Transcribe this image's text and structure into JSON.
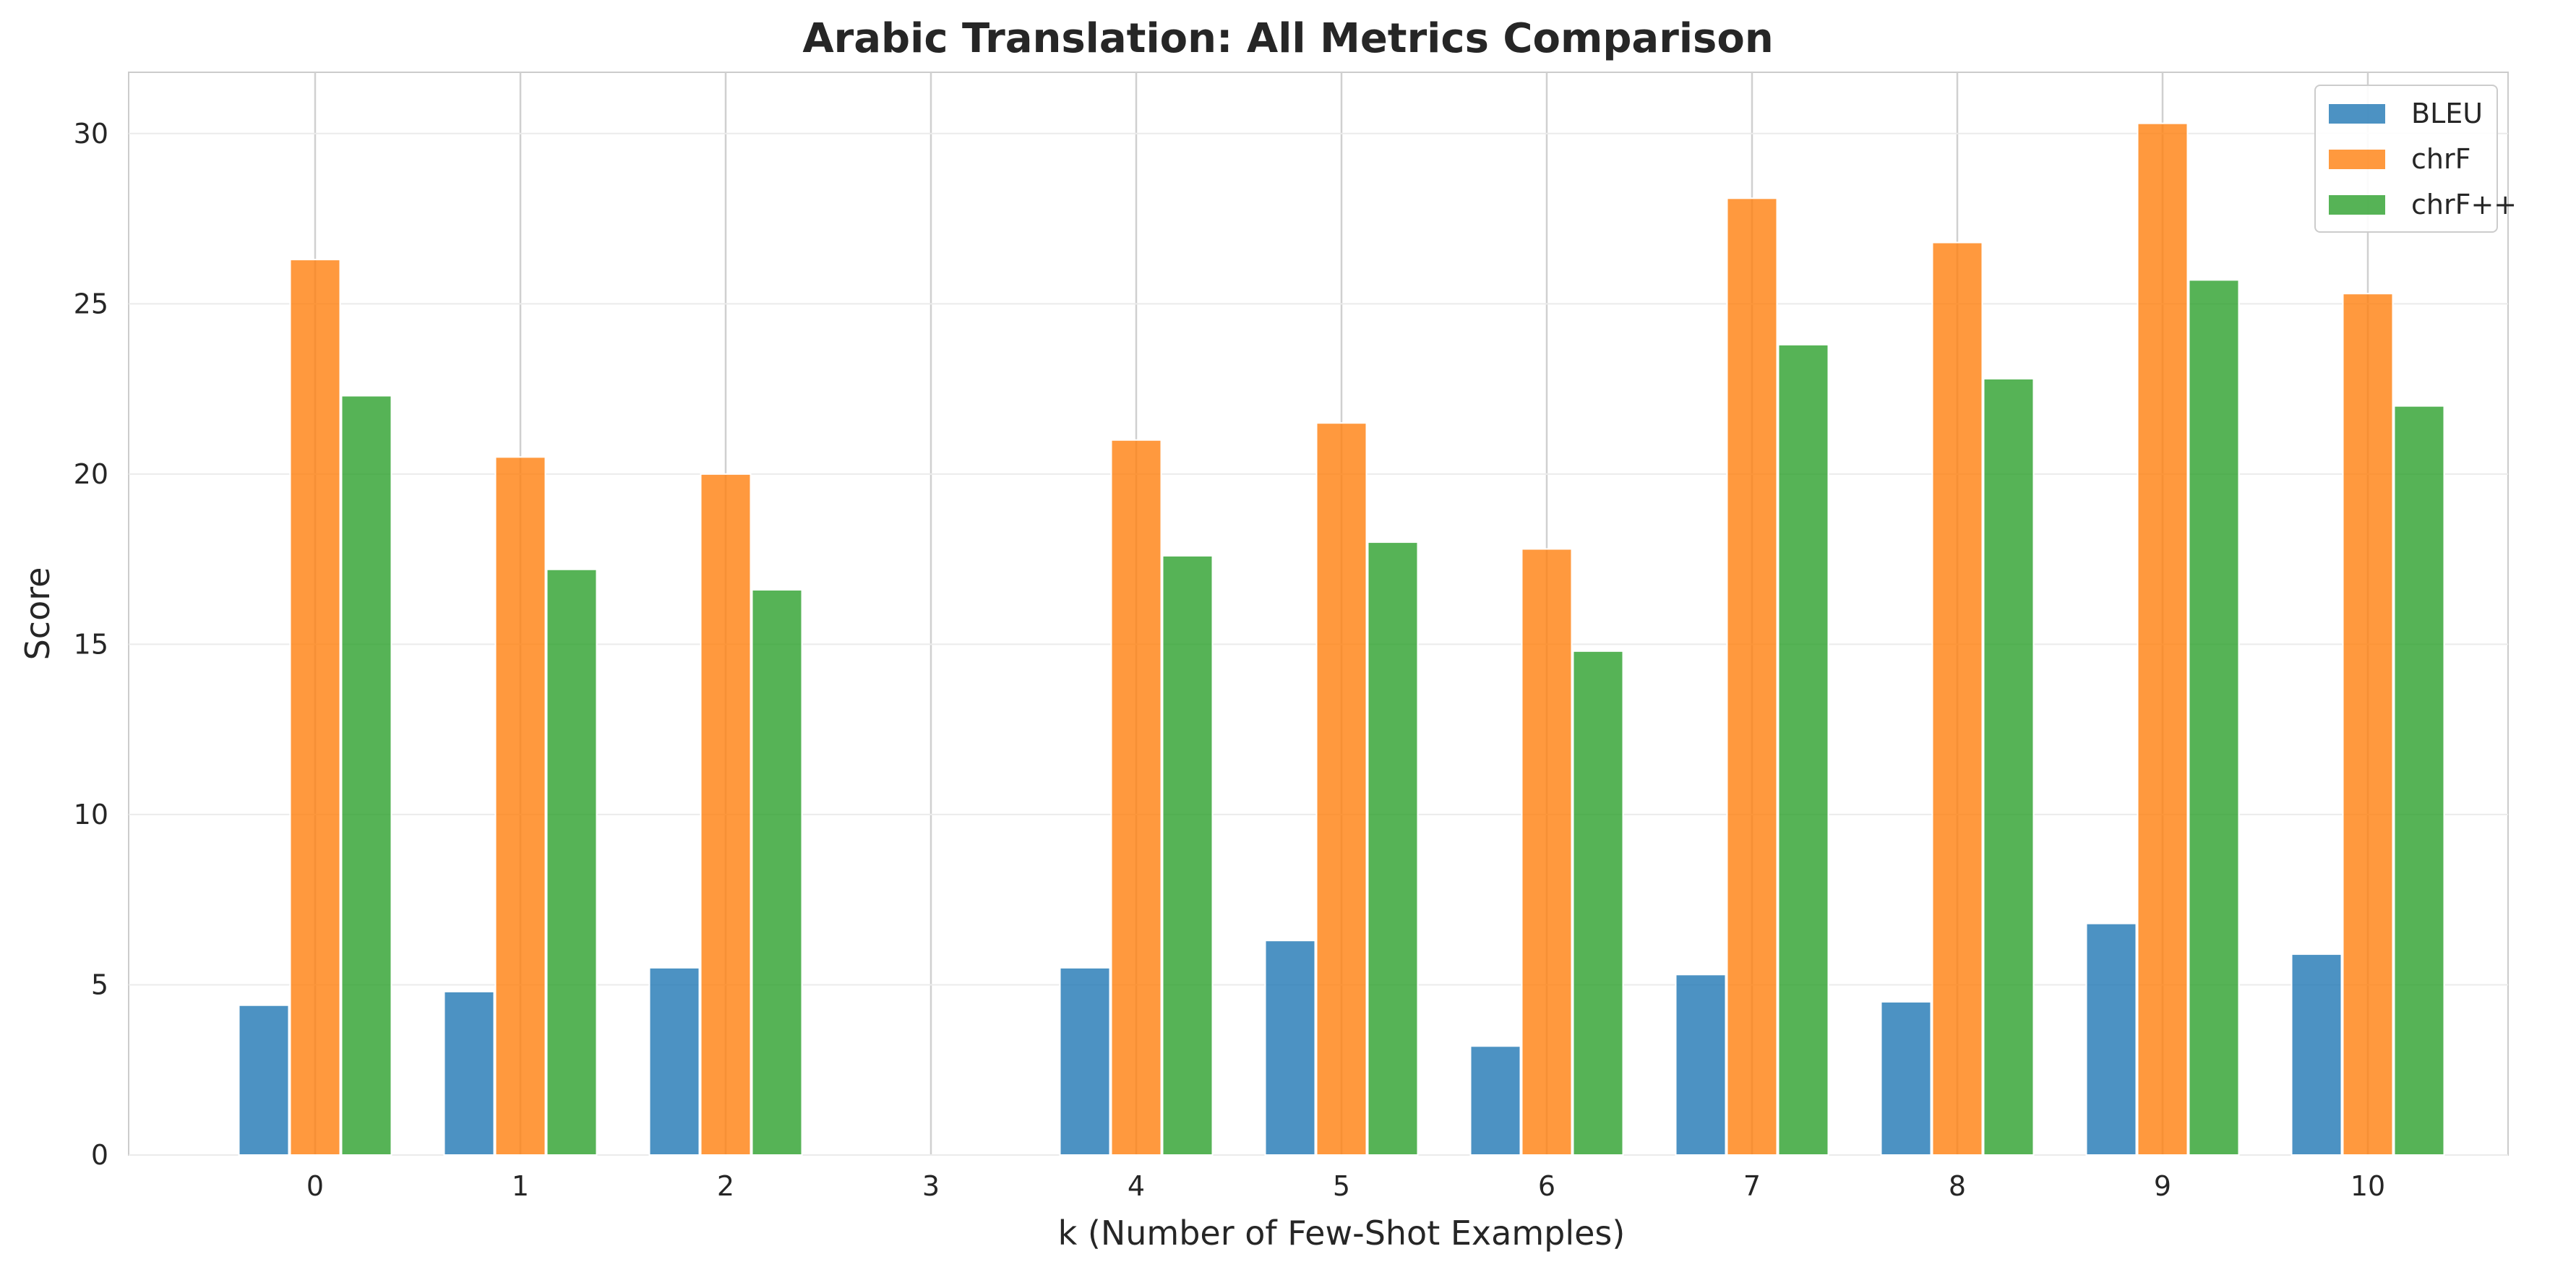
{
  "chart_data": {
    "type": "bar",
    "title": "Arabic Translation: All Metrics Comparison",
    "xlabel": "k (Number of Few-Shot Examples)",
    "ylabel": "Score",
    "categories": [
      "0",
      "1",
      "2",
      "3",
      "4",
      "5",
      "6",
      "7",
      "8",
      "9",
      "10"
    ],
    "series": [
      {
        "name": "BLEU",
        "color": "#1f77b4",
        "values": [
          4.4,
          4.8,
          5.5,
          0,
          5.5,
          6.3,
          3.2,
          5.3,
          4.5,
          6.8,
          5.9
        ]
      },
      {
        "name": "chrF",
        "color": "#ff7f0e",
        "values": [
          26.3,
          20.5,
          20.0,
          0,
          21.0,
          21.5,
          17.8,
          28.1,
          26.8,
          30.3,
          25.3
        ]
      },
      {
        "name": "chrF++",
        "color": "#2ca02c",
        "values": [
          22.3,
          17.2,
          16.6,
          0,
          17.6,
          18.0,
          14.8,
          23.8,
          22.8,
          25.7,
          22.0
        ]
      }
    ],
    "ylim": [
      0,
      31.8
    ],
    "yticks": [
      "0",
      "5",
      "10",
      "15",
      "20",
      "25",
      "30"
    ],
    "grid": true,
    "legend_position": "top-right"
  }
}
